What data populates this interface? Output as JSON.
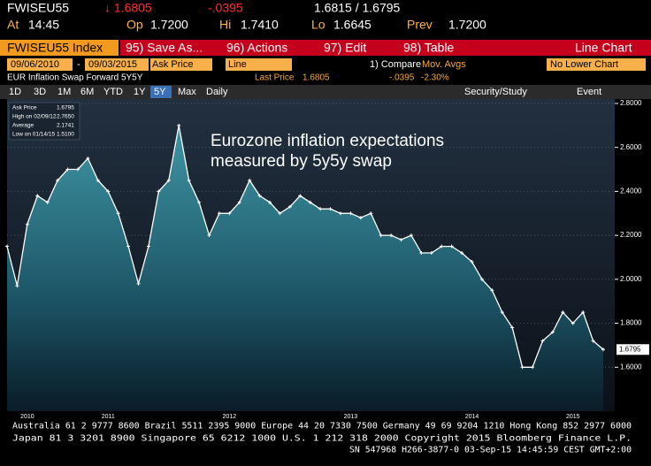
{
  "header": {
    "ticker": "FWISEU55",
    "last": "↓ 1.6805",
    "change": "-.0395",
    "bid_ask": "1.6815 / 1.6795",
    "at_label": "At",
    "at": "14:45",
    "op_label": "Op",
    "op": "1.7200",
    "hi_label": "Hi",
    "hi": "1.7410",
    "lo_label": "Lo",
    "lo": "1.6645",
    "prev_label": "Prev",
    "prev": "1.7200"
  },
  "menu": {
    "security": "FWISEU55 Index",
    "save": "95) Save As...",
    "actions": "96) Actions",
    "edit": "97) Edit",
    "table": "98) Table",
    "chart_type": "Line Chart"
  },
  "controls": {
    "start": "09/06/2010",
    "dash": "-",
    "end": "09/03/2015",
    "field": "Ask Price",
    "style": "Line",
    "compare": "1) Compare",
    "mov_avgs": "Mov. Avgs",
    "lower": "No Lower Chart"
  },
  "info": {
    "description": "EUR Inflation Swap Forward 5Y5Y",
    "last_price_label": "Last Price",
    "last_price": "1.6805",
    "change": "-.0395",
    "change_pct": "-2.30%"
  },
  "periods": [
    "1D",
    "3D",
    "1M",
    "6M",
    "YTD",
    "1Y",
    "5Y",
    "Max",
    "Daily"
  ],
  "tools": {
    "study": "Security/Study",
    "event": "Event"
  },
  "chart_data": {
    "type": "area",
    "annotation": [
      "Eurozone inflation expectations",
      "measured by 5y5y swap"
    ],
    "legend": [
      {
        "label": "Ask Price",
        "value": "1.6795"
      },
      {
        "label": "High on 02/09/12",
        "value": "2.7650"
      },
      {
        "label": "Average",
        "value": "2.1741"
      },
      {
        "label": "Low on 01/14/15",
        "value": "1.5100"
      }
    ],
    "last_label": "1.6795",
    "categories": [
      null,
      null,
      "2010",
      null,
      null,
      null,
      null,
      null,
      null,
      null,
      "2011",
      null,
      null,
      null,
      null,
      null,
      null,
      null,
      null,
      null,
      null,
      null,
      "2012",
      null,
      null,
      null,
      null,
      null,
      null,
      null,
      null,
      null,
      null,
      null,
      "2013",
      null,
      null,
      null,
      null,
      null,
      null,
      null,
      null,
      null,
      null,
      null,
      "2014",
      null,
      null,
      null,
      null,
      null,
      null,
      null,
      null,
      null,
      "2015",
      null,
      null,
      null
    ],
    "values": [
      2.15,
      1.97,
      2.25,
      2.38,
      2.35,
      2.45,
      2.5,
      2.5,
      2.55,
      2.45,
      2.4,
      2.3,
      2.15,
      1.98,
      2.15,
      2.4,
      2.45,
      2.7,
      2.45,
      2.35,
      2.2,
      2.3,
      2.3,
      2.35,
      2.45,
      2.38,
      2.35,
      2.3,
      2.33,
      2.38,
      2.35,
      2.32,
      2.32,
      2.3,
      2.3,
      2.28,
      2.3,
      2.2,
      2.2,
      2.18,
      2.2,
      2.12,
      2.12,
      2.15,
      2.15,
      2.12,
      2.08,
      2.0,
      1.95,
      1.85,
      1.78,
      1.6,
      1.6,
      1.72,
      1.76,
      1.85,
      1.8,
      1.85,
      1.72,
      1.6805
    ],
    "color": "#ffffff",
    "ylim": [
      1.4,
      2.82
    ],
    "yticks": [
      {
        "value": 1.6,
        "label": "1.6000"
      },
      {
        "value": 1.8,
        "label": "1.8000"
      },
      {
        "value": 2.0,
        "label": "2.0000"
      },
      {
        "value": 2.2,
        "label": "2.2000"
      },
      {
        "value": 2.4,
        "label": "2.4000"
      },
      {
        "value": 2.6,
        "label": "2.6000"
      },
      {
        "value": 2.8,
        "label": "2.8000"
      }
    ],
    "grid": true
  },
  "footer": {
    "lines": [
      "Australia 61 2 9777 8600 Brazil 5511 2395 9000 Europe 44 20 7330 7500 Germany 49 69 9204 1210 Hong Kong 852 2977 6000",
      "Japan 81 3 3201 8900        Singapore 65 6212 1000        U.S. 1 212 318 2000        Copyright 2015 Bloomberg Finance L.P.",
      "SN 547968 H266-3877-0 03-Sep-15 14:45:59 CEST GMT+2:00"
    ]
  }
}
